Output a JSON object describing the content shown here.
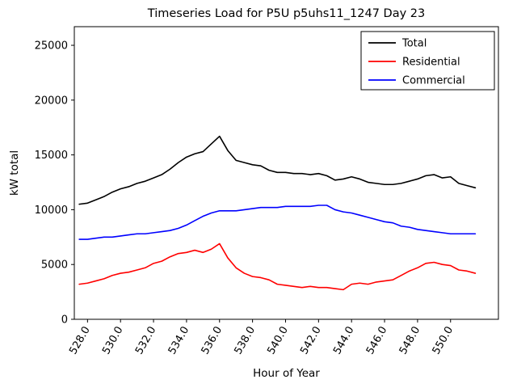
{
  "figure": {
    "title": "Timeseries Load for P5U p5uhs11_1247  Day 23",
    "xlabel": "Hour of Year",
    "ylabel": "kW total"
  },
  "chart_data": {
    "type": "line",
    "title": "Timeseries Load for P5U p5uhs11_1247  Day 23",
    "xlabel": "Hour of Year",
    "ylabel": "kW total",
    "xlim": [
      527.2,
      552.9
    ],
    "ylim": [
      0,
      26700
    ],
    "grid": false,
    "legend_position": "upper right",
    "x_ticks": [
      528,
      530,
      532,
      534,
      536,
      538,
      540,
      542,
      544,
      546,
      548,
      550
    ],
    "x_tick_labels": [
      "528.0",
      "530.0",
      "532.0",
      "534.0",
      "536.0",
      "538.0",
      "540.0",
      "542.0",
      "544.0",
      "546.0",
      "548.0",
      "550.0"
    ],
    "y_ticks": [
      0,
      5000,
      10000,
      15000,
      20000,
      25000
    ],
    "y_tick_labels": [
      "0",
      "5000",
      "10000",
      "15000",
      "20000",
      "25000"
    ],
    "x": [
      527.5,
      528.0,
      528.5,
      529.0,
      529.5,
      530.0,
      530.5,
      531.0,
      531.5,
      532.0,
      532.5,
      533.0,
      533.5,
      534.0,
      534.5,
      535.0,
      535.5,
      536.0,
      536.5,
      537.0,
      537.5,
      538.0,
      538.5,
      539.0,
      539.5,
      540.0,
      540.5,
      541.0,
      541.5,
      542.0,
      542.5,
      543.0,
      543.5,
      544.0,
      544.5,
      545.0,
      545.5,
      546.0,
      546.5,
      547.0,
      547.5,
      548.0,
      548.5,
      549.0,
      549.5,
      550.0,
      550.5,
      551.0,
      551.5
    ],
    "series": [
      {
        "name": "Total",
        "color": "#000000",
        "values": [
          10500,
          10600,
          10900,
          11200,
          11600,
          11900,
          12100,
          12400,
          12600,
          12900,
          13200,
          13700,
          14300,
          14800,
          15100,
          15300,
          16000,
          16700,
          15400,
          14500,
          14300,
          14100,
          14000,
          13600,
          13400,
          13400,
          13300,
          13300,
          13200,
          13300,
          13100,
          12700,
          12800,
          13000,
          12800,
          12500,
          12400,
          12300,
          12300,
          12400,
          12600,
          12800,
          13100,
          13200,
          12900,
          13000,
          12400,
          12200,
          12000
        ]
      },
      {
        "name": "Residential",
        "color": "#ff0000",
        "values": [
          3200,
          3300,
          3500,
          3700,
          4000,
          4200,
          4300,
          4500,
          4700,
          5100,
          5300,
          5700,
          6000,
          6100,
          6300,
          6100,
          6400,
          6900,
          5600,
          4700,
          4200,
          3900,
          3800,
          3600,
          3200,
          3100,
          3000,
          2900,
          3000,
          2900,
          2900,
          2800,
          2700,
          3200,
          3300,
          3200,
          3400,
          3500,
          3600,
          4000,
          4400,
          4700,
          5100,
          5200,
          5000,
          4900,
          4500,
          4400,
          4200
        ]
      },
      {
        "name": "Commercial",
        "color": "#0000ff",
        "values": [
          7300,
          7300,
          7400,
          7500,
          7500,
          7600,
          7700,
          7800,
          7800,
          7900,
          8000,
          8100,
          8300,
          8600,
          9000,
          9400,
          9700,
          9900,
          9900,
          9900,
          10000,
          10100,
          10200,
          10200,
          10200,
          10300,
          10300,
          10300,
          10300,
          10400,
          10400,
          10000,
          9800,
          9700,
          9500,
          9300,
          9100,
          8900,
          8800,
          8500,
          8400,
          8200,
          8100,
          8000,
          7900,
          7800,
          7800,
          7800,
          7800
        ]
      }
    ]
  }
}
